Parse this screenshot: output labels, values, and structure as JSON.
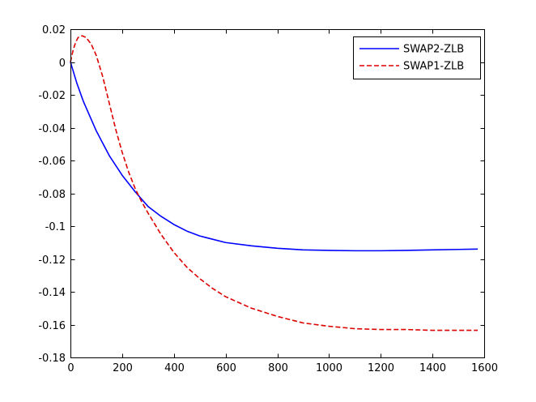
{
  "chart_data": {
    "type": "line",
    "title": "",
    "xlabel": "",
    "ylabel": "",
    "xlim": [
      0,
      1600
    ],
    "ylim": [
      -0.18,
      0.02
    ],
    "xticks": [
      0,
      200,
      400,
      600,
      800,
      1000,
      1200,
      1400,
      1600
    ],
    "xtick_labels": [
      "0",
      "200",
      "400",
      "600",
      "800",
      "1000",
      "1200",
      "1400",
      "1600"
    ],
    "yticks": [
      0.02,
      0,
      -0.02,
      -0.04,
      -0.06,
      -0.08,
      -0.1,
      -0.12,
      -0.14,
      -0.16,
      -0.18
    ],
    "ytick_labels": [
      "0.02",
      "0",
      "-0.02",
      "-0.04",
      "-0.06",
      "-0.08",
      "-0.1",
      "-0.12",
      "-0.14",
      "-0.16",
      "-0.18"
    ],
    "grid": false,
    "legend_position": "top-right",
    "series": [
      {
        "name": "SWAP2-ZLB",
        "color": "#0000ff",
        "style": "solid",
        "x": [
          0,
          25,
          50,
          100,
          150,
          200,
          250,
          300,
          350,
          400,
          450,
          500,
          600,
          700,
          800,
          900,
          1000,
          1100,
          1200,
          1300,
          1400,
          1500,
          1575
        ],
        "y": [
          0,
          -0.013,
          -0.024,
          -0.042,
          -0.057,
          -0.069,
          -0.079,
          -0.088,
          -0.094,
          -0.099,
          -0.103,
          -0.106,
          -0.11,
          -0.112,
          -0.1135,
          -0.1145,
          -0.1148,
          -0.115,
          -0.115,
          -0.1148,
          -0.1145,
          -0.1142,
          -0.114
        ]
      },
      {
        "name": "SWAP1-ZLB",
        "color": "#dd0000",
        "style": "dashed",
        "x": [
          0,
          10,
          20,
          30,
          45,
          60,
          80,
          100,
          125,
          150,
          175,
          200,
          225,
          250,
          275,
          300,
          350,
          400,
          450,
          500,
          550,
          600,
          700,
          800,
          900,
          1000,
          1100,
          1200,
          1300,
          1400,
          1500,
          1575
        ],
        "y": [
          0.0,
          0.007,
          0.012,
          0.015,
          0.016,
          0.015,
          0.011,
          0.004,
          -0.009,
          -0.025,
          -0.041,
          -0.055,
          -0.067,
          -0.077,
          -0.085,
          -0.092,
          -0.105,
          -0.116,
          -0.125,
          -0.132,
          -0.138,
          -0.143,
          -0.15,
          -0.155,
          -0.159,
          -0.161,
          -0.1625,
          -0.163,
          -0.163,
          -0.1635,
          -0.1635,
          -0.1635
        ]
      }
    ]
  }
}
